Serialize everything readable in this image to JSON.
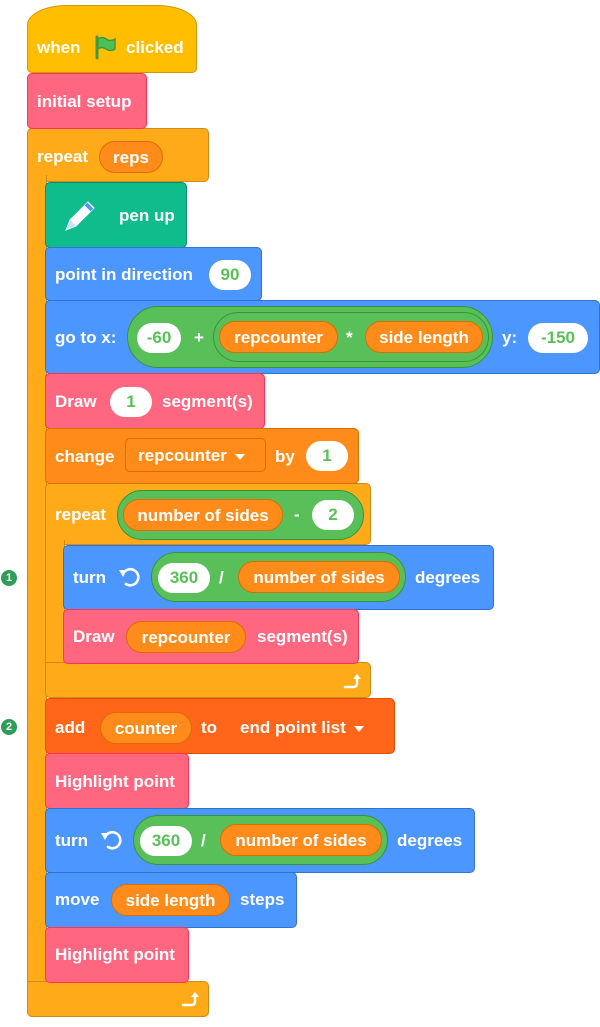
{
  "colors": {
    "event": "#ffbf00",
    "control": "#ffab19",
    "my_blocks": "#ff6680",
    "pen": "#0fbd8c",
    "motion": "#4c97ff",
    "operators": "#59c059",
    "variables": "#ff8c1a",
    "lists": "#ff661a"
  },
  "icons": [
    "green-flag-icon",
    "pen-icon",
    "turn-left-icon",
    "loop-arrow-icon"
  ],
  "markers": [
    "1",
    "2"
  ],
  "script": {
    "hat": {
      "when": "when",
      "clicked": "clicked"
    },
    "initial_setup": "initial setup",
    "repeat_outer": {
      "label": "repeat",
      "count": "reps"
    },
    "pen_up": "pen up",
    "point_dir": {
      "label": "point in direction",
      "value": "90"
    },
    "goto": {
      "label": "go to x:",
      "x_base": "-60",
      "plus": "+",
      "var1": "repcounter",
      "times": "*",
      "var2": "side length",
      "y_label": "y:",
      "y_value": "-150"
    },
    "draw1": {
      "label": "Draw",
      "value": "1",
      "suffix": "segment(s)"
    },
    "change": {
      "label": "change",
      "var": "repcounter",
      "by": "by",
      "value": "1"
    },
    "repeat_inner": {
      "label": "repeat",
      "var": "number of sides",
      "minus": "-",
      "value": "2"
    },
    "turn1": {
      "label": "turn",
      "num": "360",
      "div": "/",
      "var": "number of sides",
      "suffix": "degrees"
    },
    "draw2": {
      "label": "Draw",
      "var": "repcounter",
      "suffix": "segment(s)"
    },
    "add": {
      "label": "add",
      "var": "counter",
      "to": "to",
      "list": "end point list"
    },
    "highlight1": "Highlight point",
    "turn2": {
      "label": "turn",
      "num": "360",
      "div": "/",
      "var": "number of sides",
      "suffix": "degrees"
    },
    "move": {
      "label": "move",
      "var": "side length",
      "suffix": "steps"
    },
    "highlight2": "Highlight point"
  }
}
